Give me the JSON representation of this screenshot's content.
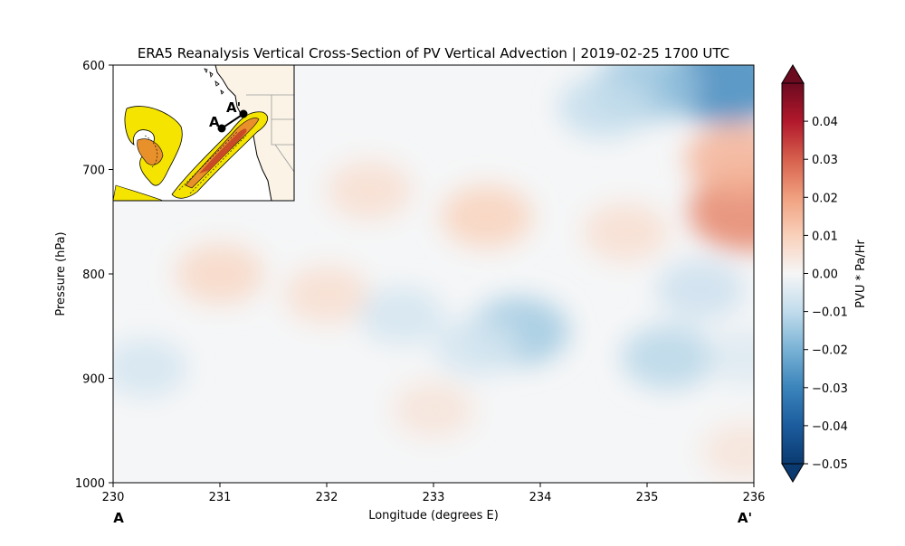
{
  "chart_data": {
    "type": "heatmap",
    "title": "ERA5 Reanalysis Vertical Cross-Section of PV Vertical Advection | 2019-02-25 1700 UTC",
    "xlabel": "Longitude (degrees E)",
    "ylabel": "Pressure (hPa)",
    "xlim": [
      230,
      236
    ],
    "ylim": [
      1000,
      600
    ],
    "x_ticks": [
      "230",
      "231",
      "232",
      "233",
      "234",
      "235",
      "236"
    ],
    "y_ticks": [
      "600",
      "700",
      "800",
      "900",
      "1000"
    ],
    "endpoint_labels": {
      "start": "A",
      "end": "A'"
    },
    "colorbar": {
      "label": "PVU * Pa/Hr",
      "vmin": -0.05,
      "vmax": 0.05,
      "extend": "both",
      "cmap": "RdBu_r",
      "ticks": [
        "0.04",
        "0.03",
        "0.02",
        "0.01",
        "0.00",
        "−0.01",
        "−0.02",
        "−0.03",
        "−0.04",
        "−0.05"
      ]
    },
    "features": [
      {
        "lon": 235.75,
        "p": 615,
        "value": -0.018
      },
      {
        "lon": 235.0,
        "p": 620,
        "value": -0.01
      },
      {
        "lon": 234.6,
        "p": 640,
        "value": -0.006
      },
      {
        "lon": 235.95,
        "p": 740,
        "value": 0.015
      },
      {
        "lon": 235.85,
        "p": 690,
        "value": 0.01
      },
      {
        "lon": 233.5,
        "p": 745,
        "value": 0.006
      },
      {
        "lon": 232.4,
        "p": 720,
        "value": 0.004
      },
      {
        "lon": 231.0,
        "p": 800,
        "value": 0.005
      },
      {
        "lon": 232.0,
        "p": 820,
        "value": 0.004
      },
      {
        "lon": 233.8,
        "p": 855,
        "value": -0.009
      },
      {
        "lon": 233.4,
        "p": 870,
        "value": -0.004
      },
      {
        "lon": 235.2,
        "p": 880,
        "value": -0.007
      },
      {
        "lon": 235.5,
        "p": 815,
        "value": -0.005
      },
      {
        "lon": 232.7,
        "p": 840,
        "value": -0.004
      },
      {
        "lon": 230.3,
        "p": 890,
        "value": -0.004
      },
      {
        "lon": 234.8,
        "p": 760,
        "value": 0.004
      },
      {
        "lon": 235.9,
        "p": 970,
        "value": 0.003
      },
      {
        "lon": 233.0,
        "p": 930,
        "value": 0.003
      },
      {
        "lon": 235.95,
        "p": 880,
        "value": -0.003
      }
    ]
  },
  "inset_map": {
    "point_a_label": "A",
    "point_b_label": "A'"
  }
}
